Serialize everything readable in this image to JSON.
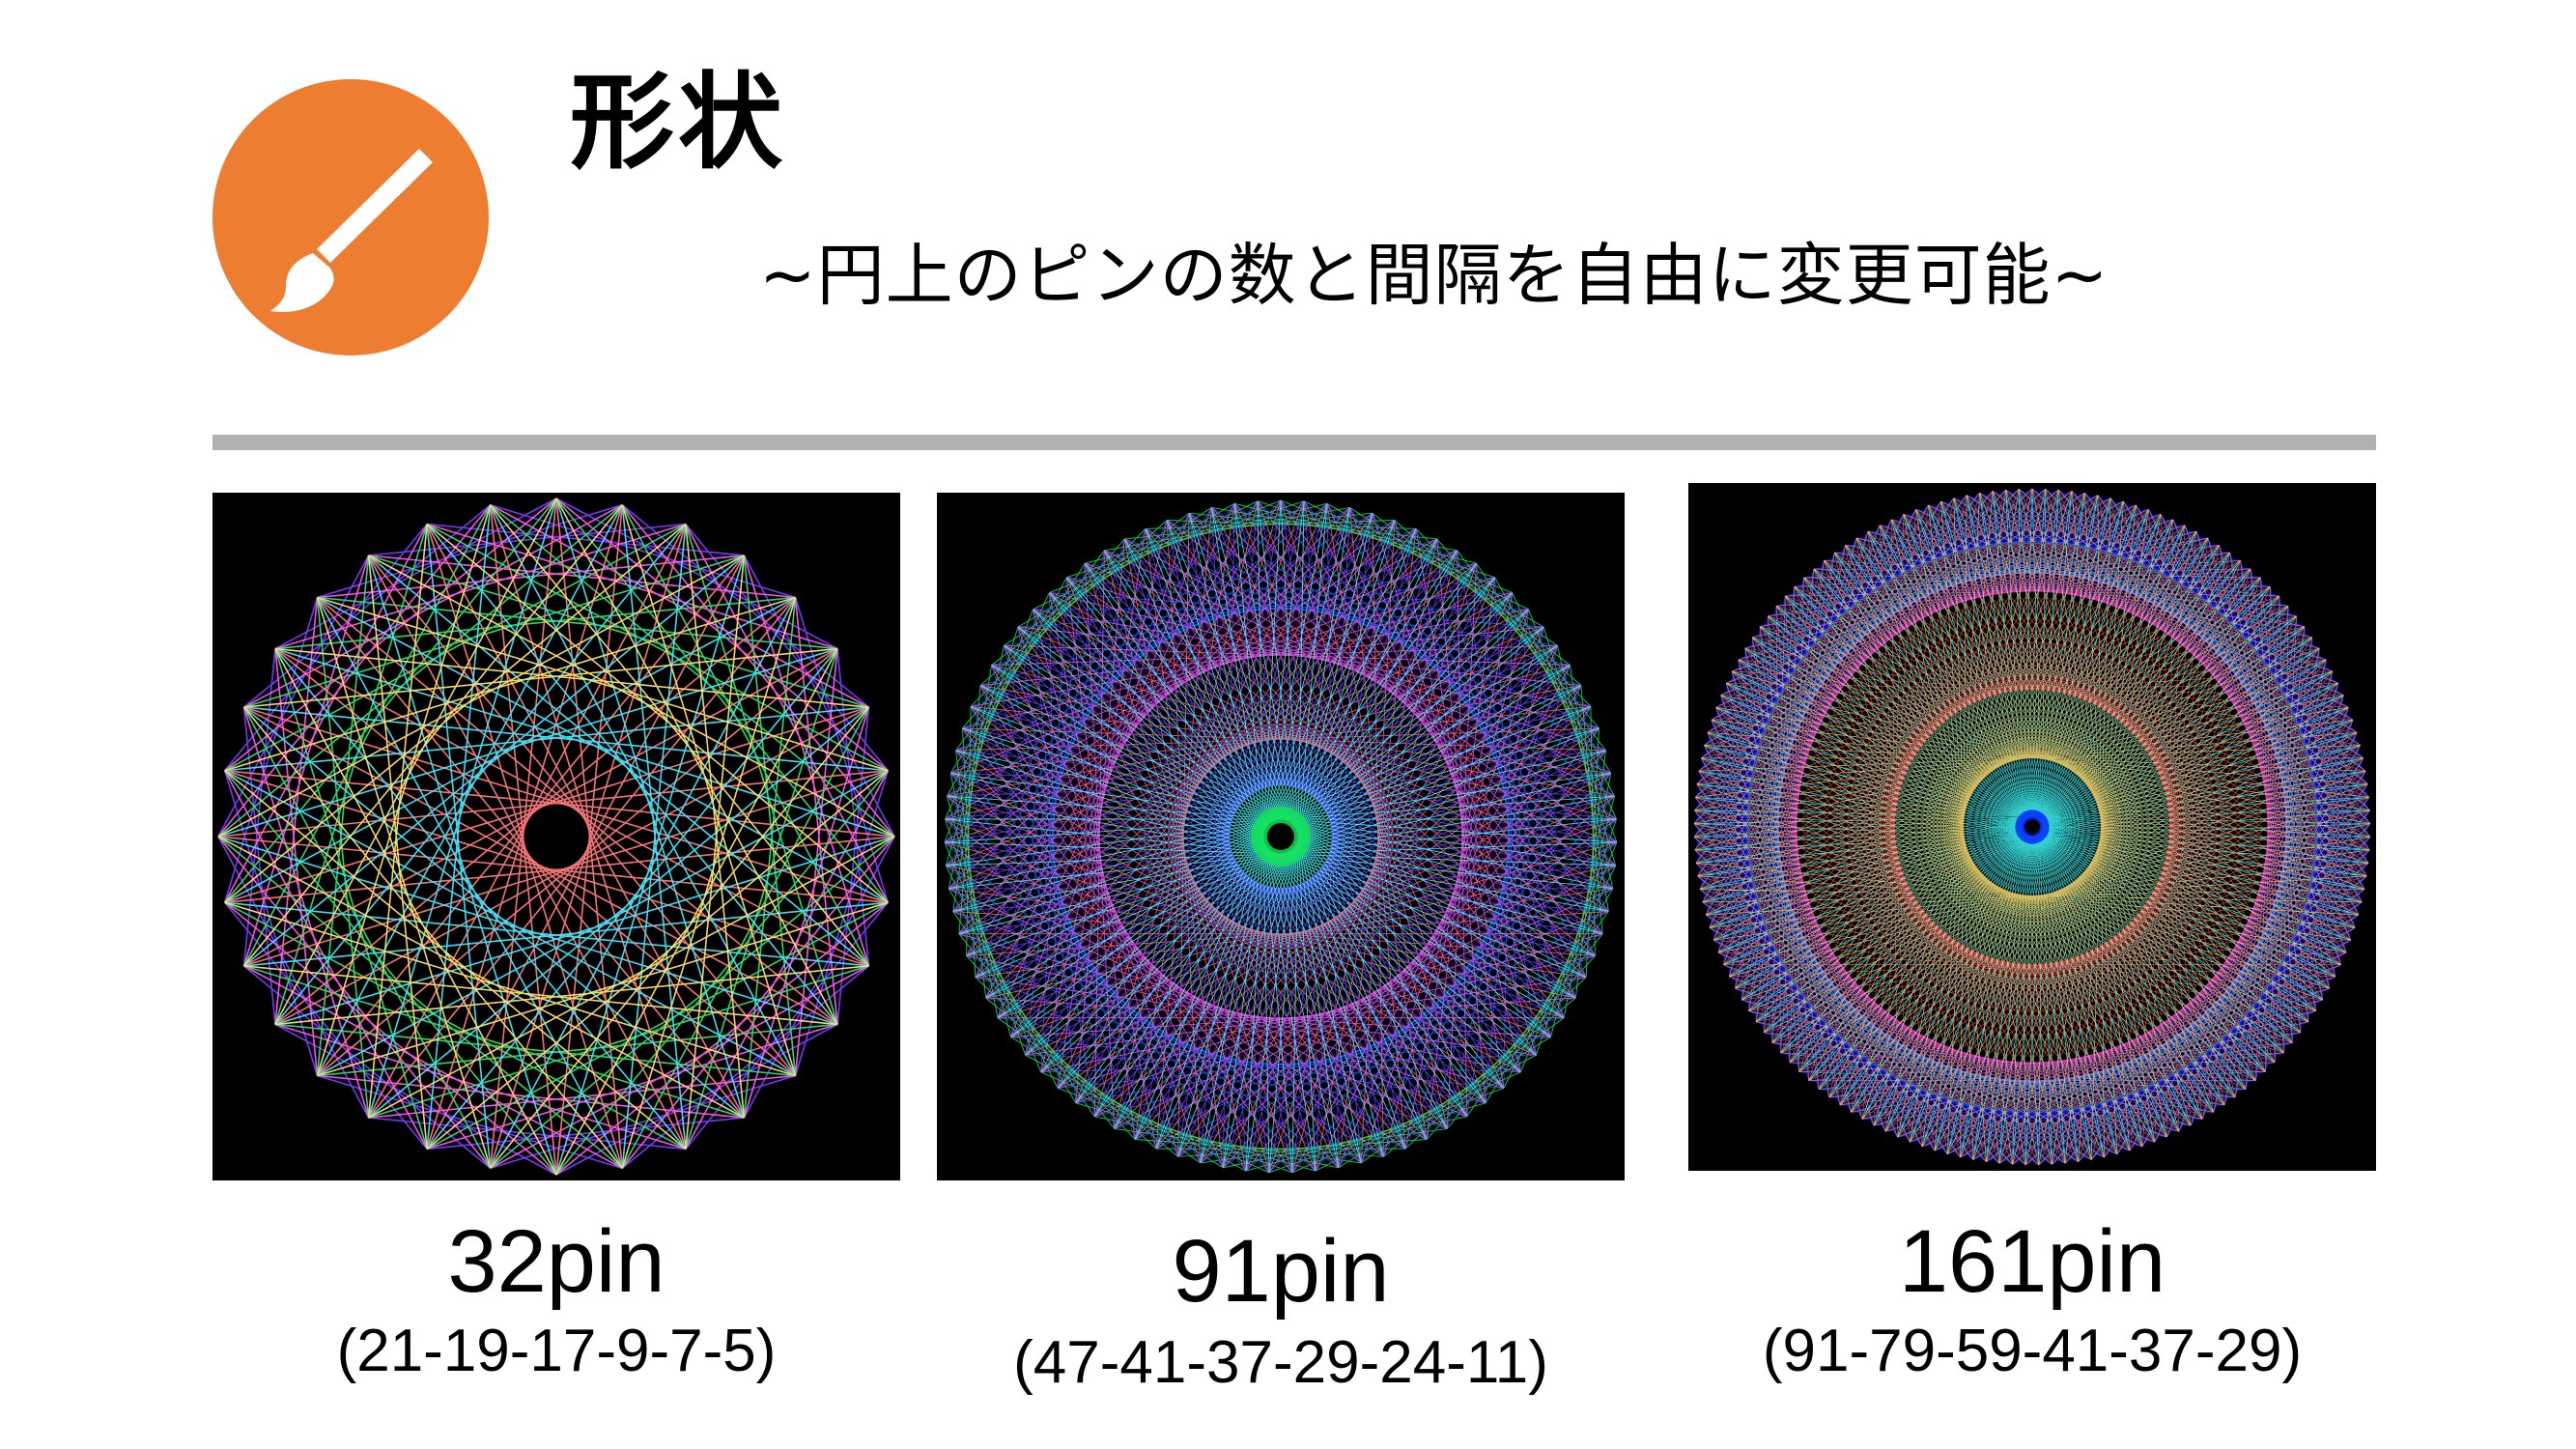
{
  "header": {
    "title": "形状",
    "subtitle": "~円上のピンの数と間隔を自由に変更可能~",
    "icon": "paintbrush-icon",
    "accent_color": "#ed7d31",
    "divider_color": "#b1b1b1"
  },
  "examples": [
    {
      "pin_label": "32pin",
      "sequence": "(21-19-17-9-7-5)"
    },
    {
      "pin_label": "91pin",
      "sequence": "(47-41-37-29-24-11)"
    },
    {
      "pin_label": "161pin",
      "sequence": "(91-79-59-41-37-29)"
    }
  ]
}
